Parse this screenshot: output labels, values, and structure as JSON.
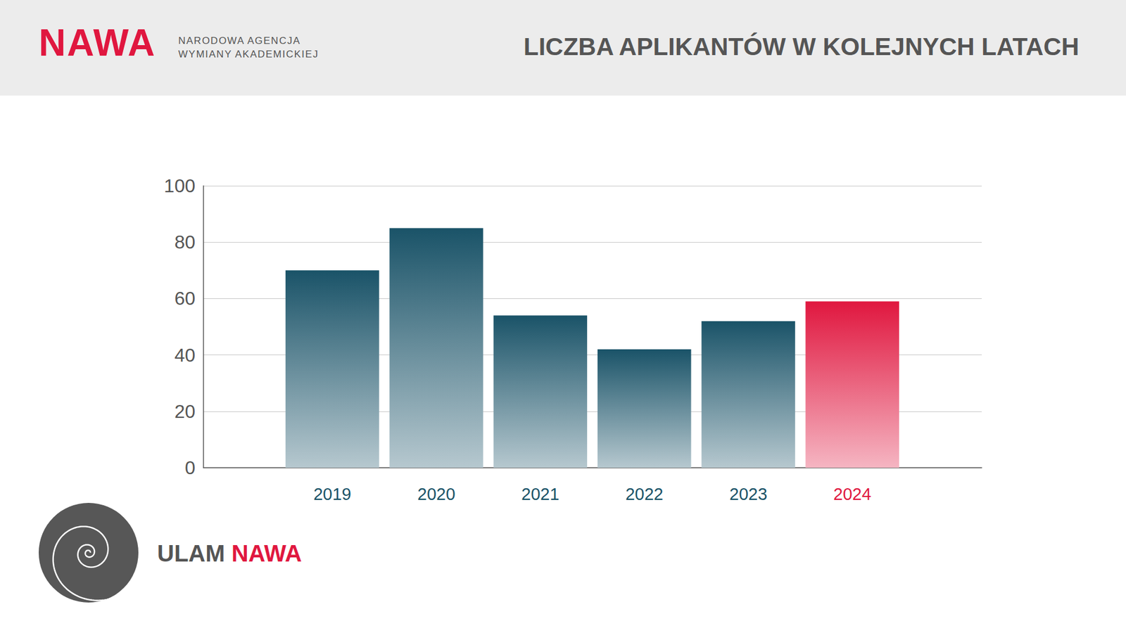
{
  "chart_data": {
    "type": "bar",
    "title": "LICZBA APLIKANTÓW W KOLEJNYCH LATACH",
    "categories": [
      "2019",
      "2020",
      "2021",
      "2022",
      "2023",
      "2024"
    ],
    "values": [
      70,
      85,
      54,
      42,
      52,
      59
    ],
    "colors": [
      "#1a5368",
      "#1a5368",
      "#1a5368",
      "#1a5368",
      "#1a5368",
      "#e0173f"
    ],
    "ylim": [
      0,
      100
    ],
    "yticks": [
      0,
      20,
      40,
      60,
      80,
      100
    ],
    "grid": true,
    "annotations": {
      "logo": "NAWA",
      "logo_subtitle": [
        "NARODOWA AGENCJA",
        "WYMIANY AKADEMICKIEJ"
      ],
      "program": [
        "ULAM",
        "NAWA"
      ]
    }
  }
}
